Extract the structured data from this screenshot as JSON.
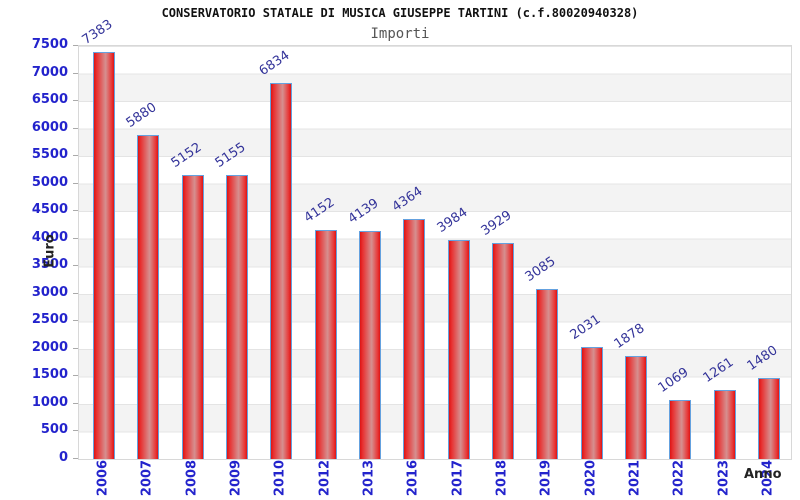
{
  "header": {
    "title": "CONSERVATORIO STATALE DI MUSICA GIUSEPPE TARTINI (c.f.80020940328)",
    "subtitle": "Importi"
  },
  "chart_data": {
    "type": "bar",
    "title": "CONSERVATORIO STATALE DI MUSICA GIUSEPPE TARTINI (c.f.80020940328)",
    "subtitle": "Importi",
    "categories": [
      "2006",
      "2007",
      "2008",
      "2009",
      "2010",
      "2012",
      "2013",
      "2016",
      "2017",
      "2018",
      "2019",
      "2020",
      "2021",
      "2022",
      "2023",
      "2024"
    ],
    "values": [
      7383,
      5880,
      5152,
      5155,
      6834,
      4152,
      4139,
      4364,
      3984,
      3929,
      3085,
      2031,
      1878,
      1069,
      1261,
      1480
    ],
    "xlabel": "Anno",
    "ylabel": "Euro",
    "ylim": [
      0,
      7500
    ],
    "ytick_step": 500,
    "y_tick_labels": [
      "0",
      "500",
      "1000",
      "1500",
      "2000",
      "2500",
      "3000",
      "3500",
      "4000",
      "4500",
      "5000",
      "5500",
      "6000",
      "6500",
      "7000",
      "7500"
    ],
    "grid": true,
    "legend": "none",
    "bar_labels_shown": true
  },
  "colors": {
    "tick_label_blue": "#2323cc",
    "value_label_navy": "#333399",
    "bar_border_blue": "#64a1df",
    "bar_red_dark": "#dd1414",
    "bar_red": "#e83232",
    "bar_red_light": "#d69090",
    "band_gray": "#f3f3f3",
    "gridline_gray": "#e4e4e4",
    "axis_title_color": "#222222",
    "subtitle_gray": "#555555",
    "title_color": "#111111"
  }
}
